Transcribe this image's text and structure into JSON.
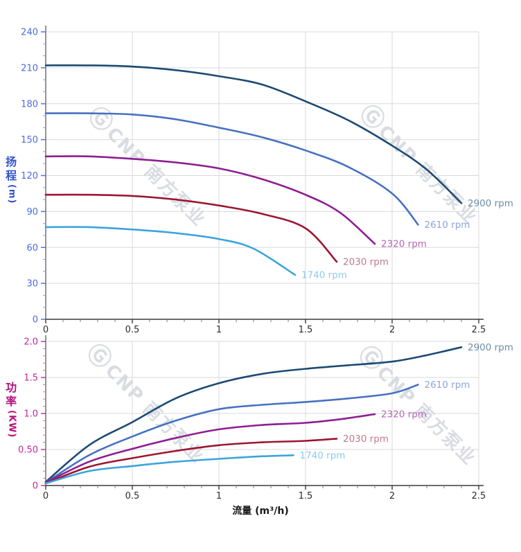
{
  "watermark": {
    "logo_glyph": "Ⓖ",
    "text": "CNP 南方泵业"
  },
  "x_axis_title": "流量 (m³/h)",
  "chart_data": {
    "type": "line",
    "title": "",
    "x_axis": {
      "label": "流量 (m³/h)",
      "range": [
        0,
        2.5
      ],
      "tick_values": [
        0,
        0.5,
        1,
        1.5,
        2,
        2.5
      ],
      "tick_labels": [
        "0",
        "0.5",
        "1",
        "1.5",
        "2",
        "2.5"
      ],
      "minor_step": 0.1,
      "tick_color": "#2b2b2b"
    },
    "grid": true,
    "charts": [
      {
        "name": "head",
        "y_axis": {
          "label": "扬程",
          "label_chars": [
            "扬",
            "程"
          ],
          "unit": "(m)",
          "range": [
            0,
            240
          ],
          "tick_values": [
            0,
            30,
            60,
            90,
            120,
            150,
            180,
            210,
            240
          ],
          "tick_labels": [
            "0",
            "30",
            "60",
            "90",
            "120",
            "150",
            "180",
            "210",
            "240"
          ],
          "minor_step": 10,
          "title_color": "#3153c9",
          "tick_color": "#4a6be0",
          "minor_tick_color": "#8a9ce8"
        },
        "series": [
          {
            "name": "2900 rpm",
            "color": "#1b4a73",
            "label_color": "#6b8cab",
            "points": [
              [
                0,
                212
              ],
              [
                0.25,
                212
              ],
              [
                0.5,
                211
              ],
              [
                0.75,
                208
              ],
              [
                1.0,
                203
              ],
              [
                1.25,
                196
              ],
              [
                1.5,
                182
              ],
              [
                1.75,
                166
              ],
              [
                2.0,
                145
              ],
              [
                2.2,
                125
              ],
              [
                2.4,
                97
              ]
            ]
          },
          {
            "name": "2610 rpm",
            "color": "#4671c1",
            "label_color": "#8fa3da",
            "points": [
              [
                0,
                172
              ],
              [
                0.25,
                172
              ],
              [
                0.5,
                171
              ],
              [
                0.75,
                167
              ],
              [
                1.0,
                160
              ],
              [
                1.25,
                152
              ],
              [
                1.5,
                141
              ],
              [
                1.75,
                127
              ],
              [
                2.0,
                105
              ],
              [
                2.15,
                79
              ]
            ]
          },
          {
            "name": "2320 rpm",
            "color": "#8f1d92",
            "label_color": "#b368b6",
            "points": [
              [
                0,
                136
              ],
              [
                0.25,
                136
              ],
              [
                0.5,
                134
              ],
              [
                0.75,
                131
              ],
              [
                1.0,
                126
              ],
              [
                1.25,
                117
              ],
              [
                1.5,
                104
              ],
              [
                1.7,
                89
              ],
              [
                1.9,
                63
              ]
            ]
          },
          {
            "name": "2030 rpm",
            "color": "#9c1531",
            "label_color": "#bd7b88",
            "points": [
              [
                0,
                104
              ],
              [
                0.25,
                104
              ],
              [
                0.5,
                103
              ],
              [
                0.75,
                100
              ],
              [
                1.0,
                95
              ],
              [
                1.25,
                88
              ],
              [
                1.5,
                76
              ],
              [
                1.68,
                48
              ]
            ]
          },
          {
            "name": "1740 rpm",
            "color": "#3ba4dc",
            "label_color": "#8ccaec",
            "points": [
              [
                0,
                77
              ],
              [
                0.25,
                77
              ],
              [
                0.5,
                75
              ],
              [
                0.75,
                72
              ],
              [
                1.0,
                67
              ],
              [
                1.2,
                59
              ],
              [
                1.44,
                37
              ]
            ]
          }
        ]
      },
      {
        "name": "power",
        "y_axis": {
          "label": "功率",
          "label_chars": [
            "功",
            "率"
          ],
          "unit": "(KW)",
          "range": [
            0,
            2.0
          ],
          "tick_values": [
            0,
            0.5,
            1.0,
            1.5,
            2.0
          ],
          "tick_labels": [
            "0",
            "0.50",
            "1.0",
            "1.5",
            "2.0"
          ],
          "minor_step": 0.1,
          "title_color": "#b5127c",
          "tick_color": "#c42799",
          "minor_tick_color": "#d36bb8"
        },
        "series": [
          {
            "name": "2900 rpm",
            "color": "#1b4a73",
            "label_color": "#6b8cab",
            "points": [
              [
                0,
                0.05
              ],
              [
                0.25,
                0.56
              ],
              [
                0.5,
                0.88
              ],
              [
                0.75,
                1.21
              ],
              [
                1.0,
                1.42
              ],
              [
                1.25,
                1.55
              ],
              [
                1.5,
                1.62
              ],
              [
                1.75,
                1.67
              ],
              [
                2.0,
                1.72
              ],
              [
                2.2,
                1.81
              ],
              [
                2.4,
                1.92
              ]
            ]
          },
          {
            "name": "2610 rpm",
            "color": "#4671c1",
            "label_color": "#8fa3da",
            "points": [
              [
                0,
                0.04
              ],
              [
                0.25,
                0.42
              ],
              [
                0.5,
                0.68
              ],
              [
                0.75,
                0.9
              ],
              [
                1.0,
                1.06
              ],
              [
                1.25,
                1.12
              ],
              [
                1.5,
                1.16
              ],
              [
                1.75,
                1.21
              ],
              [
                2.0,
                1.28
              ],
              [
                2.15,
                1.4
              ]
            ]
          },
          {
            "name": "2320 rpm",
            "color": "#8f1d92",
            "label_color": "#b368b6",
            "points": [
              [
                0,
                0.04
              ],
              [
                0.25,
                0.33
              ],
              [
                0.5,
                0.51
              ],
              [
                0.75,
                0.66
              ],
              [
                1.0,
                0.78
              ],
              [
                1.25,
                0.84
              ],
              [
                1.5,
                0.87
              ],
              [
                1.7,
                0.92
              ],
              [
                1.9,
                0.99
              ]
            ]
          },
          {
            "name": "2030 rpm",
            "color": "#9c1531",
            "label_color": "#bd7b88",
            "points": [
              [
                0,
                0.03
              ],
              [
                0.25,
                0.26
              ],
              [
                0.5,
                0.38
              ],
              [
                0.75,
                0.48
              ],
              [
                1.0,
                0.56
              ],
              [
                1.25,
                0.6
              ],
              [
                1.5,
                0.62
              ],
              [
                1.68,
                0.65
              ]
            ]
          },
          {
            "name": "1740 rpm",
            "color": "#3ba4dc",
            "label_color": "#8ccaec",
            "points": [
              [
                0,
                0.03
              ],
              [
                0.25,
                0.2
              ],
              [
                0.5,
                0.27
              ],
              [
                0.75,
                0.33
              ],
              [
                1.0,
                0.37
              ],
              [
                1.2,
                0.4
              ],
              [
                1.43,
                0.42
              ]
            ]
          }
        ]
      }
    ],
    "style": {
      "grid_color": "#d9d9d9",
      "axis_line_color": "#4d4d4d",
      "x_major_tick_color": "#3a3a3a",
      "x_minor_tick_color": "#7a7a7a"
    }
  }
}
